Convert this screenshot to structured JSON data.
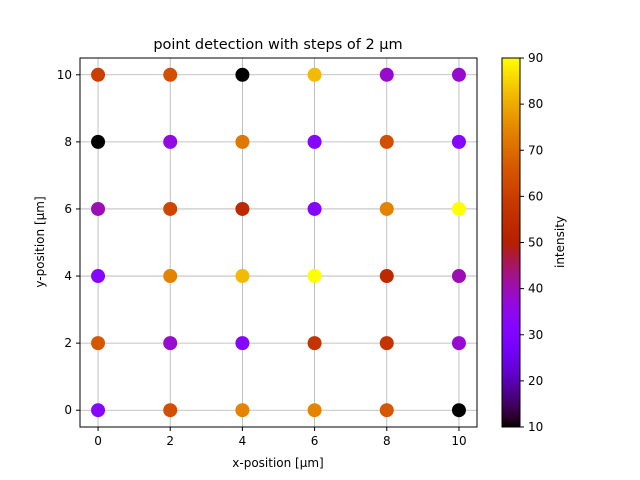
{
  "chart_data": {
    "type": "scatter",
    "title": "point detection with steps of 2 µm",
    "xlabel": "x-position [µm]",
    "ylabel": "y-position [µm]",
    "xlim": [
      -0.5,
      10.5
    ],
    "ylim": [
      -0.5,
      10.5
    ],
    "xticks": [
      0,
      2,
      4,
      6,
      8,
      10
    ],
    "yticks": [
      0,
      2,
      4,
      6,
      8,
      10
    ],
    "grid": true,
    "colormap": "gnuplot",
    "colorbar": {
      "label": "intensity",
      "min": 10,
      "max": 90,
      "ticks": [
        10,
        20,
        30,
        40,
        50,
        60,
        70,
        80,
        90
      ]
    },
    "points": [
      {
        "x": 0,
        "y": 10,
        "intensity": 60
      },
      {
        "x": 2,
        "y": 10,
        "intensity": 64
      },
      {
        "x": 4,
        "y": 10,
        "intensity": 10
      },
      {
        "x": 6,
        "y": 10,
        "intensity": 82
      },
      {
        "x": 8,
        "y": 10,
        "intensity": 38
      },
      {
        "x": 10,
        "y": 10,
        "intensity": 38
      },
      {
        "x": 0,
        "y": 8,
        "intensity": 10
      },
      {
        "x": 2,
        "y": 8,
        "intensity": 36
      },
      {
        "x": 4,
        "y": 8,
        "intensity": 72
      },
      {
        "x": 6,
        "y": 8,
        "intensity": 32
      },
      {
        "x": 8,
        "y": 8,
        "intensity": 64
      },
      {
        "x": 10,
        "y": 8,
        "intensity": 32
      },
      {
        "x": 0,
        "y": 6,
        "intensity": 40
      },
      {
        "x": 2,
        "y": 6,
        "intensity": 62
      },
      {
        "x": 4,
        "y": 6,
        "intensity": 54
      },
      {
        "x": 6,
        "y": 6,
        "intensity": 32
      },
      {
        "x": 8,
        "y": 6,
        "intensity": 74
      },
      {
        "x": 10,
        "y": 6,
        "intensity": 90
      },
      {
        "x": 0,
        "y": 4,
        "intensity": 32
      },
      {
        "x": 2,
        "y": 4,
        "intensity": 74
      },
      {
        "x": 4,
        "y": 4,
        "intensity": 82
      },
      {
        "x": 6,
        "y": 4,
        "intensity": 90
      },
      {
        "x": 8,
        "y": 4,
        "intensity": 54
      },
      {
        "x": 10,
        "y": 4,
        "intensity": 40
      },
      {
        "x": 0,
        "y": 2,
        "intensity": 66
      },
      {
        "x": 2,
        "y": 2,
        "intensity": 38
      },
      {
        "x": 4,
        "y": 2,
        "intensity": 32
      },
      {
        "x": 6,
        "y": 2,
        "intensity": 57
      },
      {
        "x": 8,
        "y": 2,
        "intensity": 57
      },
      {
        "x": 10,
        "y": 2,
        "intensity": 38
      },
      {
        "x": 0,
        "y": 0,
        "intensity": 32
      },
      {
        "x": 2,
        "y": 0,
        "intensity": 64
      },
      {
        "x": 4,
        "y": 0,
        "intensity": 74
      },
      {
        "x": 6,
        "y": 0,
        "intensity": 74
      },
      {
        "x": 8,
        "y": 0,
        "intensity": 66
      },
      {
        "x": 10,
        "y": 0,
        "intensity": 10
      }
    ]
  }
}
